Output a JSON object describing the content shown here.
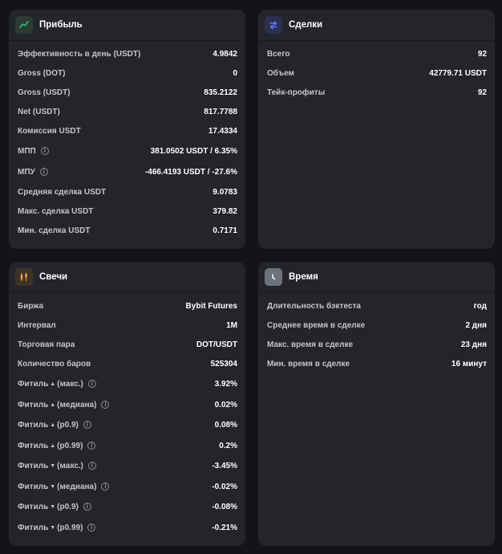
{
  "profit": {
    "title": "Прибыль",
    "icon": "line-chart-icon",
    "rows": [
      {
        "label": "Эффективность в день (USDT)",
        "value": "4.9842"
      },
      {
        "label": "Gross (DOT)",
        "value": "0"
      },
      {
        "label": "Gross (USDT)",
        "value": "835.2122"
      },
      {
        "label": "Net (USDT)",
        "value": "817.7788"
      },
      {
        "label": "Комиссия USDT",
        "value": "17.4334"
      },
      {
        "label": "МПП",
        "value": "381.0502 USDT / 6.35%",
        "info": "i"
      },
      {
        "label": "МПУ",
        "value": "-466.4193 USDT / -27.6%",
        "info": "i"
      },
      {
        "label": "Средняя сделка USDT",
        "value": "9.0783"
      },
      {
        "label": "Макс. сделка USDT",
        "value": "379.82"
      },
      {
        "label": "Мин. сделка USDT",
        "value": "0.7171"
      }
    ]
  },
  "deals": {
    "title": "Сделки",
    "icon": "swap-arrows-icon",
    "rows": [
      {
        "label": "Всего",
        "value": "92"
      },
      {
        "label": "Объем",
        "value": "42779.71 USDT"
      },
      {
        "label": "Тейк-профиты",
        "value": "92"
      }
    ]
  },
  "candles": {
    "title": "Свечи",
    "icon": "candlestick-icon",
    "rows": [
      {
        "label": "Биржа",
        "value": "Bybit Futures"
      },
      {
        "label": "Интервал",
        "value": "1M"
      },
      {
        "label": "Торговая пара",
        "value": "DOT/USDT"
      },
      {
        "label": "Количество баров",
        "value": "525304"
      },
      {
        "label_pre": "Фитиль",
        "arrow": "up",
        "label_post": "(макс.)",
        "value": "3.92%",
        "info": "i"
      },
      {
        "label_pre": "Фитиль",
        "arrow": "up",
        "label_post": "(медиана)",
        "value": "0.02%",
        "info": "i"
      },
      {
        "label_pre": "Фитиль",
        "arrow": "up",
        "label_post": "(p0.9)",
        "value": "0.08%",
        "info": "i"
      },
      {
        "label_pre": "Фитиль",
        "arrow": "up",
        "label_post": "(p0.99)",
        "value": "0.2%",
        "info": "i"
      },
      {
        "label_pre": "Фитиль",
        "arrow": "down",
        "label_post": "(макс.)",
        "value": "-3.45%",
        "info": "i"
      },
      {
        "label_pre": "Фитиль",
        "arrow": "down",
        "label_post": "(медиана)",
        "value": "-0.02%",
        "info": "i"
      },
      {
        "label_pre": "Фитиль",
        "arrow": "down",
        "label_post": "(p0.9)",
        "value": "-0.08%",
        "info": "i"
      },
      {
        "label_pre": "Фитиль",
        "arrow": "down",
        "label_post": "(p0.99)",
        "value": "-0.21%",
        "info": "i"
      }
    ]
  },
  "time": {
    "title": "Время",
    "icon": "clock-icon",
    "rows": [
      {
        "label": "Длительность бэктеста",
        "value": "год"
      },
      {
        "label": "Среднее время в сделке",
        "value": "2 дня"
      },
      {
        "label": "Макс. время в сделке",
        "value": "23 дня"
      },
      {
        "label": "Мин. время в сделке",
        "value": "16 минут"
      }
    ]
  },
  "colors": {
    "background": "#131418",
    "card": "#24252b",
    "green": "#2fbf71",
    "blue": "#4a6cf7",
    "orange": "#f0a43a",
    "label": "#c3c5cc",
    "value": "#ffffff"
  }
}
